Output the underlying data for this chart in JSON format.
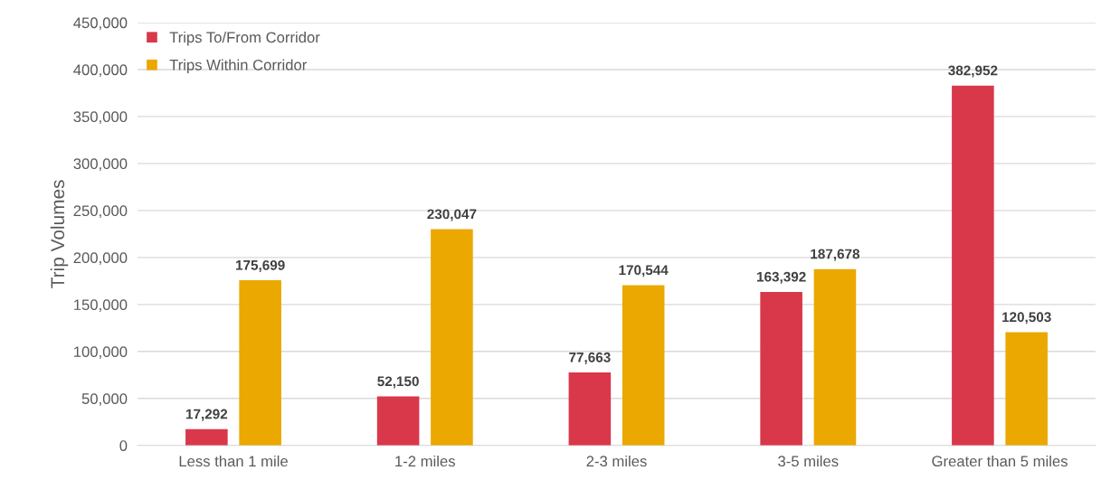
{
  "chart_data": {
    "type": "bar",
    "ylabel": "Trip Volumes",
    "categories": [
      "Less than 1 mile",
      "1-2 miles",
      "2-3 miles",
      "3-5 miles",
      "Greater than 5 miles"
    ],
    "series": [
      {
        "name": "Trips To/From Corridor",
        "color": "#d9374a",
        "values": [
          17292,
          52150,
          77663,
          163392,
          382952
        ],
        "value_labels": [
          "17,292",
          "52,150",
          "77,663",
          "163,392",
          "382,952"
        ]
      },
      {
        "name": "Trips Within Corridor",
        "color": "#eaa800",
        "values": [
          175699,
          230047,
          170544,
          187678,
          120503
        ],
        "value_labels": [
          "175,699",
          "230,047",
          "170,544",
          "187,678",
          "120,503"
        ]
      }
    ],
    "ylim": [
      0,
      450000
    ],
    "yticks": [
      0,
      {
        "value": 50000,
        "label": "50,000"
      },
      {
        "value": 100000,
        "label": "100,000"
      },
      {
        "value": 150000,
        "label": "150,000"
      },
      {
        "value": 200000,
        "label": "200,000"
      },
      {
        "value": 250000,
        "label": "250,000"
      },
      {
        "value": 300000,
        "label": "300,000"
      },
      {
        "value": 350000,
        "label": "350,000"
      },
      {
        "value": 400000,
        "label": "400,000"
      },
      {
        "value": 450000,
        "label": "450,000"
      }
    ],
    "grid": "y",
    "legend": "top left"
  }
}
